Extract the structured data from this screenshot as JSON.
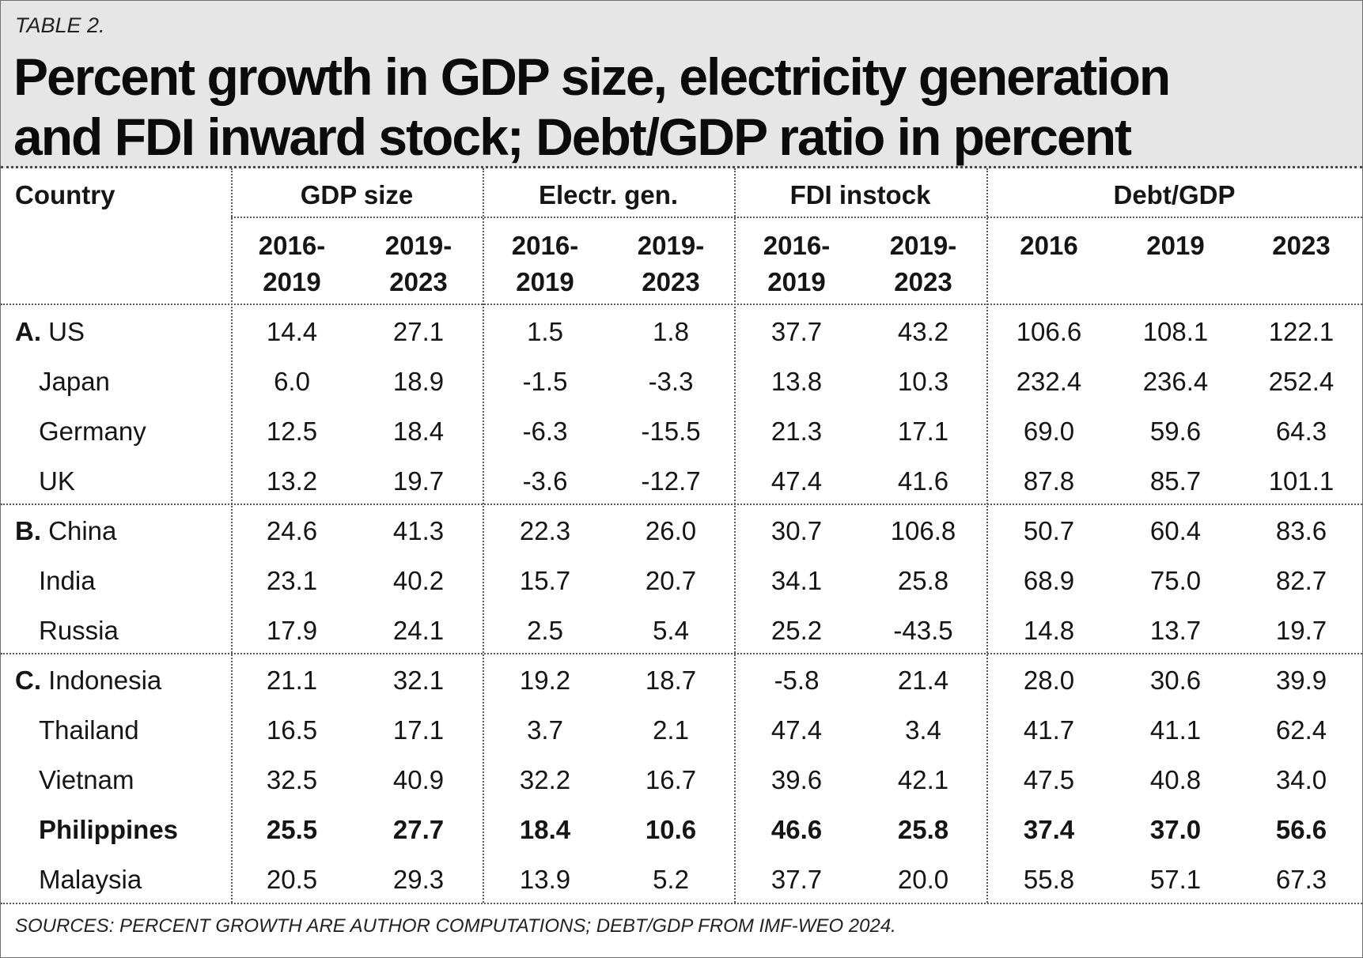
{
  "table_label": "TABLE 2.",
  "title_lines": [
    "Percent growth in GDP size, electricity generation",
    "and FDI inward stock; Debt/GDP ratio in percent"
  ],
  "header": {
    "country": "Country",
    "groups": [
      "GDP size",
      "Electr. gen.",
      "FDI instock",
      "Debt/GDP"
    ],
    "subcolumns": [
      [
        "2016-",
        "2019"
      ],
      [
        "2019-",
        "2023"
      ],
      [
        "2016-",
        "2019"
      ],
      [
        "2019-",
        "2023"
      ],
      [
        "2016-",
        "2019"
      ],
      [
        "2019-",
        "2023"
      ],
      [
        "2016",
        ""
      ],
      [
        "2019",
        ""
      ],
      [
        "2023",
        ""
      ]
    ]
  },
  "rows": [
    {
      "group": "A.",
      "country": "US",
      "bold": false,
      "values": [
        "14.4",
        "27.1",
        "1.5",
        "1.8",
        "37.7",
        "43.2",
        "106.6",
        "108.1",
        "122.1"
      ]
    },
    {
      "group": "",
      "country": "Japan",
      "bold": false,
      "values": [
        "6.0",
        "18.9",
        "-1.5",
        "-3.3",
        "13.8",
        "10.3",
        "232.4",
        "236.4",
        "252.4"
      ]
    },
    {
      "group": "",
      "country": "Germany",
      "bold": false,
      "values": [
        "12.5",
        "18.4",
        "-6.3",
        "-15.5",
        "21.3",
        "17.1",
        "69.0",
        "59.6",
        "64.3"
      ]
    },
    {
      "group": "",
      "country": "UK",
      "bold": false,
      "values": [
        "13.2",
        "19.7",
        "-3.6",
        "-12.7",
        "47.4",
        "41.6",
        "87.8",
        "85.7",
        "101.1"
      ]
    },
    {
      "group": "B.",
      "country": "China",
      "bold": false,
      "values": [
        "24.6",
        "41.3",
        "22.3",
        "26.0",
        "30.7",
        "106.8",
        "50.7",
        "60.4",
        "83.6"
      ]
    },
    {
      "group": "",
      "country": "India",
      "bold": false,
      "values": [
        "23.1",
        "40.2",
        "15.7",
        "20.7",
        "34.1",
        "25.8",
        "68.9",
        "75.0",
        "82.7"
      ]
    },
    {
      "group": "",
      "country": "Russia",
      "bold": false,
      "values": [
        "17.9",
        "24.1",
        "2.5",
        "5.4",
        "25.2",
        "-43.5",
        "14.8",
        "13.7",
        "19.7"
      ]
    },
    {
      "group": "C.",
      "country": "Indonesia",
      "bold": false,
      "values": [
        "21.1",
        "32.1",
        "19.2",
        "18.7",
        "-5.8",
        "21.4",
        "28.0",
        "30.6",
        "39.9"
      ]
    },
    {
      "group": "",
      "country": "Thailand",
      "bold": false,
      "values": [
        "16.5",
        "17.1",
        "3.7",
        "2.1",
        "47.4",
        "3.4",
        "41.7",
        "41.1",
        "62.4"
      ]
    },
    {
      "group": "",
      "country": "Vietnam",
      "bold": false,
      "values": [
        "32.5",
        "40.9",
        "32.2",
        "16.7",
        "39.6",
        "42.1",
        "47.5",
        "40.8",
        "34.0"
      ]
    },
    {
      "group": "",
      "country": "Philippines",
      "bold": true,
      "values": [
        "25.5",
        "27.7",
        "18.4",
        "10.6",
        "46.6",
        "25.8",
        "37.4",
        "37.0",
        "56.6"
      ]
    },
    {
      "group": "",
      "country": "Malaysia",
      "bold": false,
      "values": [
        "20.5",
        "29.3",
        "13.9",
        "5.2",
        "37.7",
        "20.0",
        "55.8",
        "57.1",
        "67.3"
      ]
    }
  ],
  "source_note": "SOURCES: PERCENT GROWTH ARE AUTHOR COMPUTATIONS; DEBT/GDP FROM IMF-WEO  2024."
}
